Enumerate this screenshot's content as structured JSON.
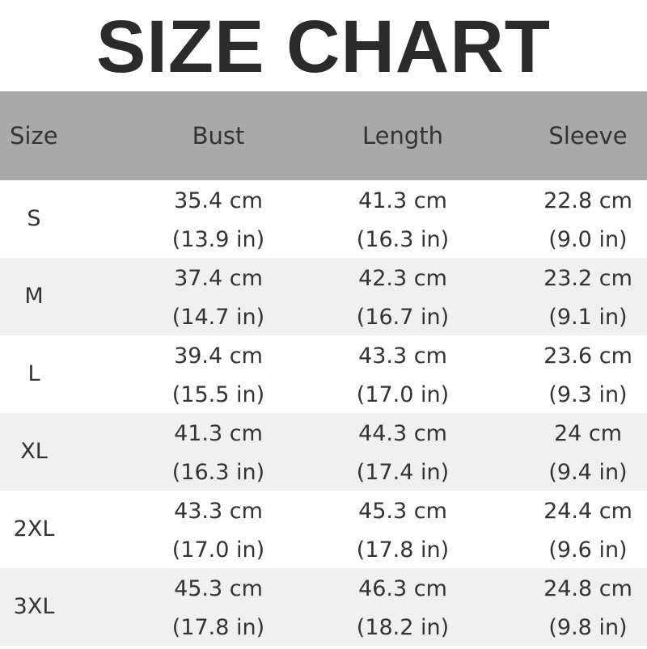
{
  "title": "SIZE CHART",
  "colors": {
    "header_bg": "#a9a9a9",
    "alt_row_bg": "#f0f0f0",
    "text": "#333333"
  },
  "headers": [
    "Size",
    "Bust",
    "Length",
    "Sleeve"
  ],
  "rows": [
    {
      "size": "S",
      "bust": [
        "35.4 cm",
        "(13.9 in)"
      ],
      "length": [
        "41.3 cm",
        "(16.3 in)"
      ],
      "sleeve": [
        "22.8 cm",
        "(9.0 in)"
      ]
    },
    {
      "size": "M",
      "bust": [
        "37.4 cm",
        "(14.7 in)"
      ],
      "length": [
        "42.3 cm",
        "(16.7 in)"
      ],
      "sleeve": [
        "23.2 cm",
        "(9.1 in)"
      ]
    },
    {
      "size": "L",
      "bust": [
        "39.4 cm",
        "(15.5 in)"
      ],
      "length": [
        "43.3 cm",
        "(17.0 in)"
      ],
      "sleeve": [
        "23.6 cm",
        "(9.3 in)"
      ]
    },
    {
      "size": "XL",
      "bust": [
        "41.3 cm",
        "(16.3 in)"
      ],
      "length": [
        "44.3 cm",
        "(17.4 in)"
      ],
      "sleeve": [
        "24 cm",
        "(9.4 in)"
      ]
    },
    {
      "size": "2XL",
      "bust": [
        "43.3 cm",
        "(17.0 in)"
      ],
      "length": [
        "45.3 cm",
        "(17.8 in)"
      ],
      "sleeve": [
        "24.4 cm",
        "(9.6 in)"
      ]
    },
    {
      "size": "3XL",
      "bust": [
        "45.3 cm",
        "(17.8 in)"
      ],
      "length": [
        "46.3 cm",
        "(18.2 in)"
      ],
      "sleeve": [
        "24.8 cm",
        "(9.8 in)"
      ]
    }
  ]
}
